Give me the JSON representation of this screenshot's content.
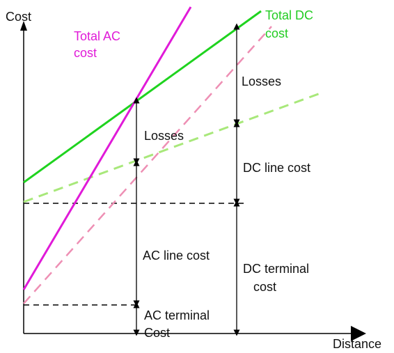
{
  "axes": {
    "y_label": "Cost",
    "x_label": "Distance"
  },
  "legend": {
    "total_ac_line1": "Total AC",
    "total_ac_line2": "cost",
    "total_dc_line1": "Total DC",
    "total_dc_line2": "cost"
  },
  "annotations": {
    "losses_ac": "Losses",
    "losses_dc": "Losses",
    "dc_line_cost": "DC line cost",
    "ac_line_cost": "AC line cost",
    "dc_terminal_line1": "DC terminal",
    "dc_terminal_line2": "cost",
    "ac_terminal_line1": "AC terminal",
    "ac_terminal_line2": "Cost"
  },
  "colors": {
    "total_ac": "#e01ad8",
    "ac_without_losses": "#ee8fb4",
    "total_dc": "#1fd31f",
    "dc_without_losses": "#a8e87a",
    "axis": "#000000",
    "dimension": "#000000"
  }
}
